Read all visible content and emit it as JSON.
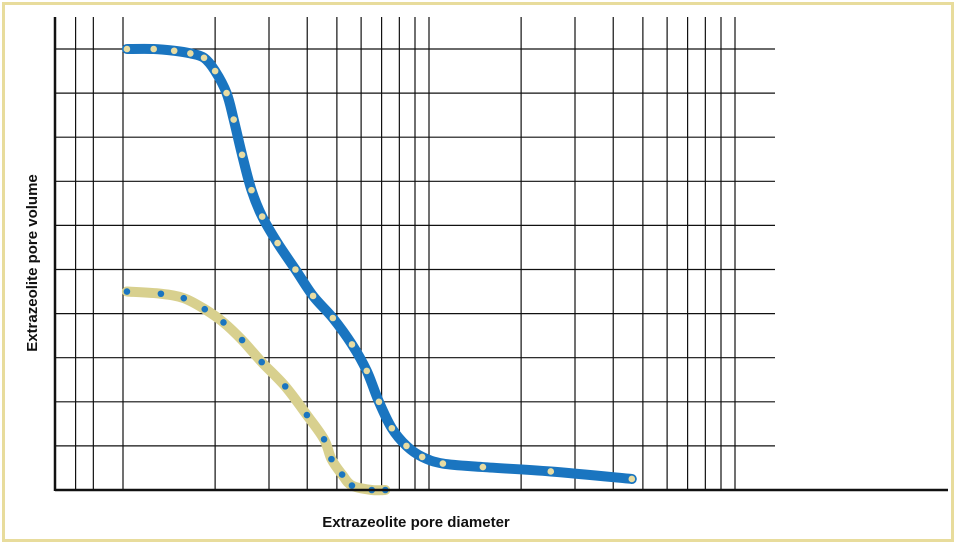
{
  "chart_data": {
    "type": "line",
    "title": "",
    "xlabel": "Extrazeolite pore diameter",
    "ylabel": "Extrazeolite pore volume",
    "x_scale": "log",
    "xlim": [
      10,
      1000
    ],
    "ylim": [
      0,
      10
    ],
    "grid": true,
    "legend": "none",
    "x_tick_labels": [],
    "y_tick_labels": [],
    "series": [
      {
        "color": "#1a75c0",
        "marker_color": "#e8dca2",
        "points": [
          [
            10.3,
            10.0
          ],
          [
            12.6,
            10.0
          ],
          [
            14.7,
            9.96
          ],
          [
            16.6,
            9.9
          ],
          [
            18.4,
            9.8
          ],
          [
            20.0,
            9.5
          ],
          [
            21.8,
            9.0
          ],
          [
            23.0,
            8.4
          ],
          [
            24.5,
            7.6
          ],
          [
            26.3,
            6.8
          ],
          [
            28.5,
            6.2
          ],
          [
            32.0,
            5.6
          ],
          [
            36.6,
            5.0
          ],
          [
            41.8,
            4.4
          ],
          [
            48.5,
            3.9
          ],
          [
            56.0,
            3.3
          ],
          [
            62.6,
            2.7
          ],
          [
            68.6,
            2.0
          ],
          [
            75.6,
            1.4
          ],
          [
            84.4,
            1.0
          ],
          [
            95.0,
            0.75
          ],
          [
            111.0,
            0.6
          ],
          [
            150.0,
            0.52
          ],
          [
            250.0,
            0.42
          ],
          [
            460.0,
            0.25
          ]
        ]
      },
      {
        "color": "#d8d08e",
        "marker_color": "#1a75c0",
        "points": [
          [
            10.3,
            4.5
          ],
          [
            13.3,
            4.45
          ],
          [
            15.8,
            4.35
          ],
          [
            18.5,
            4.1
          ],
          [
            21.3,
            3.8
          ],
          [
            24.5,
            3.4
          ],
          [
            28.4,
            2.9
          ],
          [
            33.9,
            2.35
          ],
          [
            39.9,
            1.7
          ],
          [
            45.4,
            1.15
          ],
          [
            48.0,
            0.7
          ],
          [
            52.0,
            0.35
          ],
          [
            56.0,
            0.1
          ],
          [
            65.0,
            0.0
          ],
          [
            72.0,
            0.0
          ]
        ]
      }
    ]
  }
}
